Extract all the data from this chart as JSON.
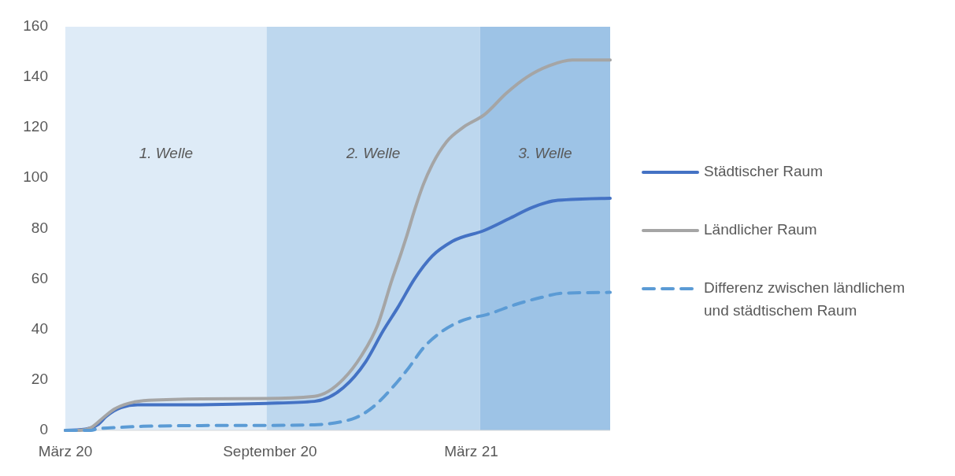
{
  "chart_data": {
    "type": "line",
    "xlim": [
      "2020-03-01",
      "2021-07-04"
    ],
    "xticks": [
      {
        "value": "2020-03-01",
        "label": "März 20"
      },
      {
        "value": "2020-09-01",
        "label": "September 20"
      },
      {
        "value": "2021-03-01",
        "label": "März 21"
      }
    ],
    "ylim": [
      0,
      160
    ],
    "yticks": [
      0,
      20,
      40,
      60,
      80,
      100,
      120,
      140,
      160
    ],
    "grid": false,
    "legend": "right",
    "bands": [
      {
        "axis": "x",
        "from": "2020-03-01",
        "to": "2020-08-29",
        "label": "1. Welle",
        "color": "#deebf7"
      },
      {
        "axis": "x",
        "from": "2020-08-29",
        "to": "2021-03-09",
        "label": "2. Welle",
        "color": "#bdd7ee"
      },
      {
        "axis": "x",
        "from": "2021-03-09",
        "to": "2021-07-04",
        "label": "3. Welle",
        "color": "#9dc3e6"
      }
    ],
    "series": [
      {
        "name": "Städtischer Raum",
        "color": "#4472c4",
        "line_style": "solid",
        "x": [
          "2020-03-01",
          "2020-03-19",
          "2020-03-30",
          "2020-04-07",
          "2020-04-20",
          "2020-05-05",
          "2020-06-05",
          "2020-08-29",
          "2020-10-11",
          "2020-11-06",
          "2020-11-26",
          "2020-12-12",
          "2020-12-25",
          "2021-01-09",
          "2021-01-25",
          "2021-02-12",
          "2021-03-13",
          "2021-04-04",
          "2021-04-25",
          "2021-05-18",
          "2021-07-04"
        ],
        "values": [
          0,
          0.5,
          2.2,
          5.6,
          9,
          10.1,
          10.1,
          10.7,
          11.5,
          16.9,
          27.1,
          39.6,
          48.7,
          60,
          69.1,
          74.9,
          79.3,
          83.9,
          88.4,
          91.2,
          92
        ]
      },
      {
        "name": "Ländlicher Raum",
        "color": "#a5a5a5",
        "line_style": "solid",
        "x": [
          "2020-03-01",
          "2020-03-14",
          "2020-03-24",
          "2020-04-04",
          "2020-04-14",
          "2020-04-27",
          "2020-05-15",
          "2020-07-01",
          "2020-08-29",
          "2020-10-11",
          "2020-11-06",
          "2020-11-22",
          "2020-12-07",
          "2020-12-20",
          "2020-12-28",
          "2021-01-02",
          "2021-01-09",
          "2021-01-17",
          "2021-01-25",
          "2021-02-07",
          "2021-02-22",
          "2021-03-13",
          "2021-04-02",
          "2021-04-20",
          "2021-05-10",
          "2021-05-31",
          "2021-07-04"
        ],
        "values": [
          0,
          0,
          1.1,
          5,
          8.4,
          10.7,
          11.9,
          12.5,
          12.6,
          13.5,
          20.3,
          29.4,
          41.9,
          60,
          70.2,
          77,
          87.2,
          97.5,
          105.4,
          114.5,
          120.2,
          125.2,
          133.8,
          140,
          144.5,
          146.8,
          146.8
        ]
      },
      {
        "name": "Differenz zwischen ländlichem und städtischem Raum",
        "color": "#5b9bd5",
        "line_style": "dashed",
        "x": [
          "2020-03-01",
          "2020-03-24",
          "2020-03-30",
          "2020-04-20",
          "2020-05-10",
          "2020-07-01",
          "2020-09-16",
          "2020-10-11",
          "2020-11-14",
          "2020-12-02",
          "2020-12-20",
          "2021-01-04",
          "2021-01-17",
          "2021-02-02",
          "2021-02-22",
          "2021-03-15",
          "2021-04-10",
          "2021-05-03",
          "2021-05-23",
          "2021-07-04"
        ],
        "values": [
          0,
          0,
          0.6,
          1.2,
          1.6,
          1.9,
          2.0,
          2.2,
          4.5,
          9,
          16.9,
          24.9,
          32.7,
          39,
          43.7,
          45.9,
          49.9,
          52.7,
          54.4,
          54.7
        ]
      }
    ]
  }
}
